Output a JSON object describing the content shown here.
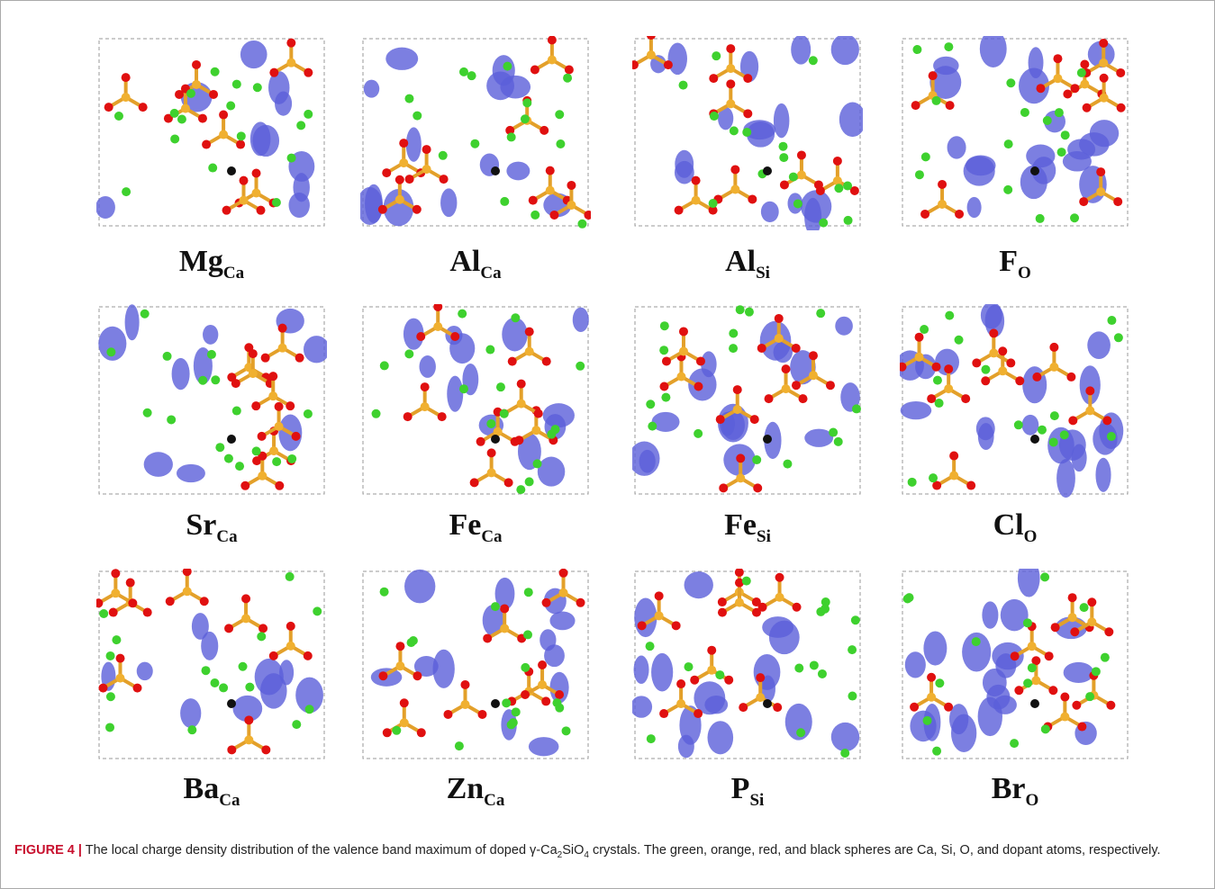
{
  "panels": [
    {
      "label": "Mg",
      "subscript": "Ca"
    },
    {
      "label": "Al",
      "subscript": "Ca"
    },
    {
      "label": "Al",
      "subscript": "Si"
    },
    {
      "label": "F",
      "subscript": "O"
    },
    {
      "label": "Sr",
      "subscript": "Ca"
    },
    {
      "label": "Fe",
      "subscript": "Ca"
    },
    {
      "label": "Fe",
      "subscript": "Si"
    },
    {
      "label": "Cl",
      "subscript": "O"
    },
    {
      "label": "Ba",
      "subscript": "Ca"
    },
    {
      "label": "Zn",
      "subscript": "Ca"
    },
    {
      "label": "P",
      "subscript": "Si"
    },
    {
      "label": "Br",
      "subscript": "O"
    }
  ],
  "caption": {
    "figure_label": "FIGURE 4 |",
    "text_before": "The local charge density distribution of the valence band maximum of doped γ-Ca",
    "sub1": "2",
    "text_mid": "SiO",
    "sub2": "4",
    "text_after": " crystals. The green, orange, red, and black spheres are Ca, Si, O, and dopant atoms, respectively."
  }
}
